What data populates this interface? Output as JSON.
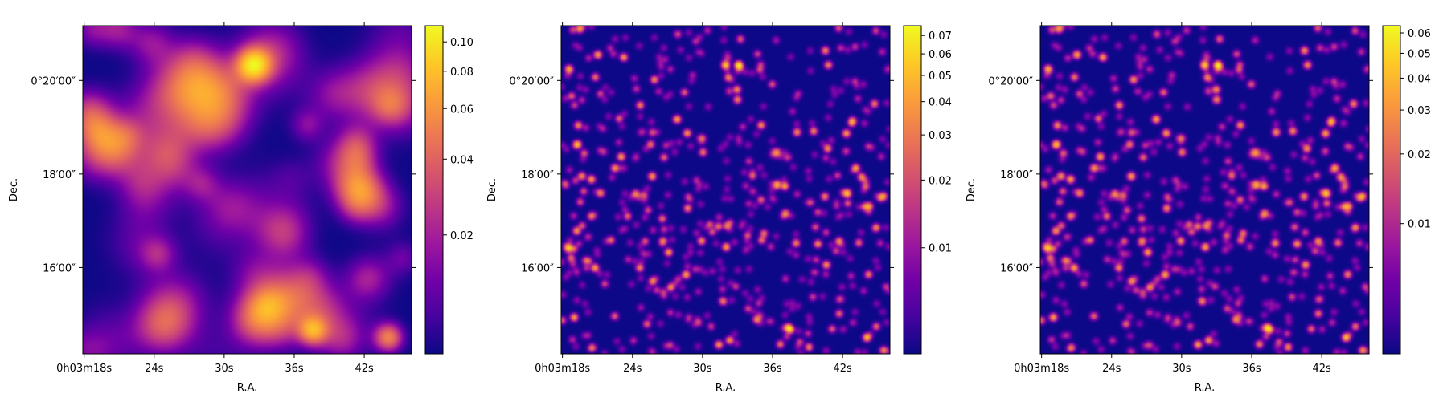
{
  "colormap": {
    "name": "plasma",
    "stops": [
      "#0d0887",
      "#46039f",
      "#7201a8",
      "#9c179e",
      "#bd3786",
      "#d8576b",
      "#ed7953",
      "#fb9f3a",
      "#fdca26",
      "#f0f921"
    ]
  },
  "chart_data": [
    {
      "type": "heatmap",
      "title": "",
      "xlabel": "R.A.",
      "ylabel": "Dec.",
      "x_ticks": [
        "0h03m18s",
        "24s",
        "30s",
        "36s",
        "42s"
      ],
      "y_ticks": [
        "0°20′00″",
        "18′00″",
        "16′00″"
      ],
      "colorbar": {
        "min": 0.0,
        "max": 0.113,
        "scale": "asinh",
        "soft": 0.02,
        "ticks": [
          0.02,
          0.04,
          0.06,
          0.08,
          0.1
        ],
        "tick_labels": [
          "0.02",
          "0.04",
          "0.06",
          "0.08",
          "0.10"
        ]
      },
      "field": "smooth"
    },
    {
      "type": "heatmap",
      "title": "",
      "xlabel": "R.A.",
      "ylabel": "Dec.",
      "x_ticks": [
        "0h03m18s",
        "24s",
        "30s",
        "36s",
        "42s"
      ],
      "y_ticks": [
        "0°20′00″",
        "18′00″",
        "16′00″"
      ],
      "colorbar": {
        "min": 0.0,
        "max": 0.076,
        "scale": "asinh",
        "soft": 0.01,
        "ticks": [
          0.01,
          0.02,
          0.03,
          0.04,
          0.05,
          0.06,
          0.07
        ],
        "tick_labels": [
          "0.01",
          "0.02",
          "0.03",
          "0.04",
          "0.05",
          "0.06",
          "0.07"
        ]
      },
      "field": "sources"
    },
    {
      "type": "heatmap",
      "title": "",
      "xlabel": "R.A.",
      "ylabel": "Dec.",
      "x_ticks": [
        "0h03m18s",
        "24s",
        "30s",
        "36s",
        "42s"
      ],
      "y_ticks": [
        "0°20′00″",
        "18′00″",
        "16′00″"
      ],
      "colorbar": {
        "min": 0.0,
        "max": 0.064,
        "scale": "asinh",
        "soft": 0.007,
        "ticks": [
          0.01,
          0.02,
          0.03,
          0.04,
          0.05,
          0.06
        ],
        "tick_labels": [
          "0.01",
          "0.02",
          "0.03",
          "0.04",
          "0.05",
          "0.06"
        ]
      },
      "field": "sources"
    }
  ]
}
